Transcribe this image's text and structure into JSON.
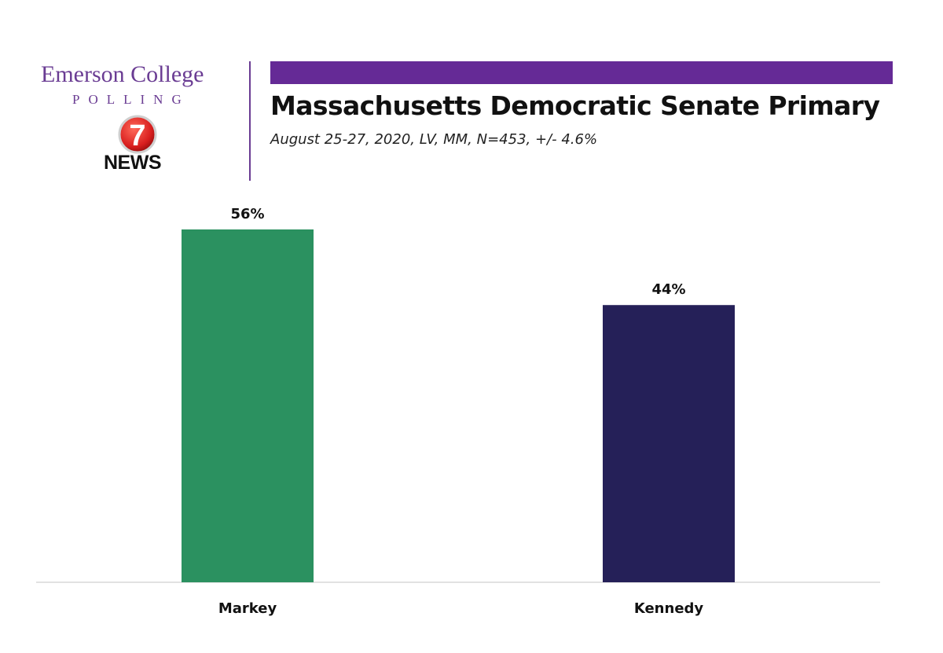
{
  "branding": {
    "org_name": "Emerson College",
    "org_sub": "POLLING",
    "partner_number": "7",
    "partner_name": "NEWS",
    "accent_color": "#652a96"
  },
  "chart_data": {
    "type": "bar",
    "title": "Massachusetts Democratic Senate Primary",
    "subtitle": "August 25-27, 2020, LV, MM, N=453, +/- 4.6%",
    "categories": [
      "Markey",
      "Kennedy"
    ],
    "values": [
      56,
      44
    ],
    "value_labels": [
      "56%",
      "44%"
    ],
    "colors": [
      "#2b9160",
      "#252058"
    ],
    "ylim": [
      0,
      56
    ],
    "grid": false,
    "legend": "none",
    "xlabel": "",
    "ylabel": ""
  }
}
